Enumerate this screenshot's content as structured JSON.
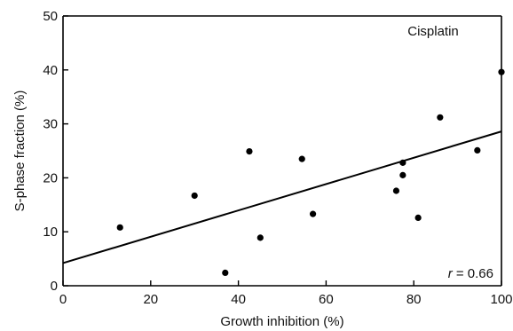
{
  "chart_data": {
    "type": "scatter",
    "title": "",
    "xlabel": "Growth inhibition (%)",
    "ylabel": "S-phase fraction (%)",
    "xlim": [
      0,
      100
    ],
    "ylim": [
      0,
      50
    ],
    "x_ticks": [
      0,
      20,
      40,
      60,
      80,
      100
    ],
    "y_ticks": [
      0,
      10,
      20,
      30,
      40,
      50
    ],
    "grid": false,
    "legend": "none",
    "annotation": "Cisplatin",
    "r_label": "r",
    "r_value_text": " = 0.66",
    "colors": {
      "points": "#000000",
      "line": "#000000",
      "axes": "#000000"
    },
    "series": [
      {
        "points": [
          {
            "x": 13,
            "y": 10.8
          },
          {
            "x": 30,
            "y": 16.7
          },
          {
            "x": 37,
            "y": 2.4
          },
          {
            "x": 42.5,
            "y": 24.9
          },
          {
            "x": 45,
            "y": 8.9
          },
          {
            "x": 54.5,
            "y": 23.5
          },
          {
            "x": 57,
            "y": 13.3
          },
          {
            "x": 76,
            "y": 17.6
          },
          {
            "x": 77.5,
            "y": 22.8
          },
          {
            "x": 77.5,
            "y": 20.5
          },
          {
            "x": 81,
            "y": 12.6
          },
          {
            "x": 86,
            "y": 31.2
          },
          {
            "x": 94.5,
            "y": 25.1
          },
          {
            "x": 100,
            "y": 39.6
          }
        ]
      }
    ],
    "fit_line": {
      "x0": 0,
      "y0": 4.2,
      "x1": 100,
      "y1": 28.6
    }
  }
}
